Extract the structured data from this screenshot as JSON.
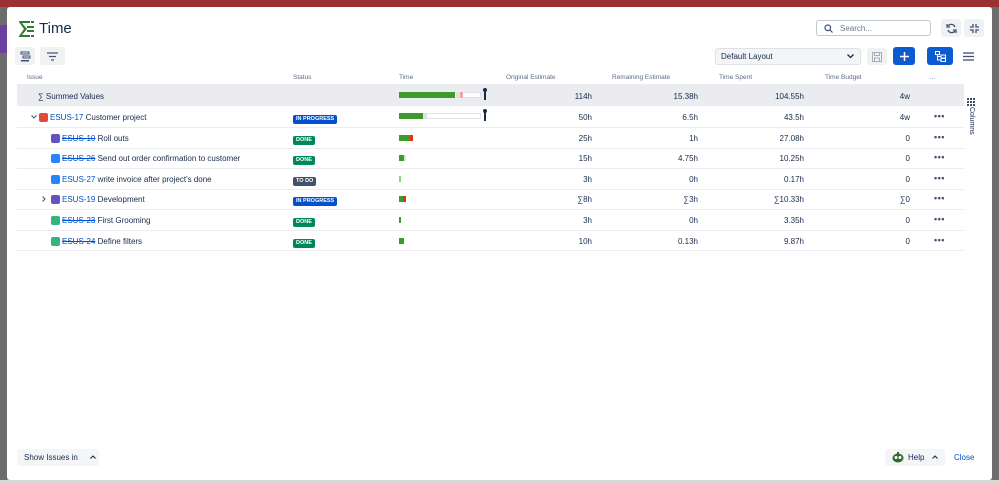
{
  "app": {
    "title": "Time"
  },
  "search": {
    "placeholder": "Search..."
  },
  "layout": {
    "selected": "Default Layout"
  },
  "columns_panel": {
    "label": "Columns"
  },
  "table": {
    "headers": [
      "Issue",
      "Status",
      "Time",
      "Original Estimate",
      "Remaining Estimate",
      "Time Spent",
      "Time Budget",
      "..."
    ],
    "summary": {
      "label": "∑ Summed Values",
      "original": "114h",
      "remaining": "15.38h",
      "spent": "104.55h",
      "budget": "4w",
      "time_progress": 0.64
    },
    "rows": [
      {
        "key": "ESUS-17",
        "summary": "Customer project",
        "status": "IN PROGRESS",
        "original": "50h",
        "remaining": "6.5h",
        "spent": "43.5h",
        "budget": "4w",
        "actions": "•••"
      },
      {
        "key": "ESUS-10",
        "summary": "Roll outs",
        "status": "DONE",
        "original": "25h",
        "remaining": "1h",
        "spent": "27.08h",
        "budget": "0",
        "actions": "•••"
      },
      {
        "key": "ESUS-26",
        "summary": "Send out order confirmation to customer",
        "status": "DONE",
        "original": "15h",
        "remaining": "4.75h",
        "spent": "10.25h",
        "budget": "0",
        "actions": "•••"
      },
      {
        "key": "ESUS-27",
        "summary": "write invoice after project's done",
        "status": "TO DO",
        "original": "3h",
        "remaining": "0h",
        "spent": "0.17h",
        "budget": "0",
        "actions": "•••"
      },
      {
        "key": "ESUS-19",
        "summary": "Development",
        "status": "IN PROGRESS",
        "original": "∑8h",
        "remaining": "∑3h",
        "spent": "∑10.33h",
        "budget": "∑0",
        "actions": "•••"
      },
      {
        "key": "ESUS-23",
        "summary": "First Grooming",
        "status": "DONE",
        "original": "3h",
        "remaining": "0h",
        "spent": "3.35h",
        "budget": "0",
        "actions": "•••"
      },
      {
        "key": "ESUS-24",
        "summary": "Define filters",
        "status": "DONE",
        "original": "10h",
        "remaining": "0.13h",
        "spent": "9.87h",
        "budget": "0",
        "actions": "•••"
      }
    ]
  },
  "footer": {
    "show_issues": "Show Issues in",
    "help": "Help",
    "close": "Close"
  },
  "colors": {
    "accent": "#0c5bd1",
    "done": "#00875a",
    "progress": "#0052cc",
    "todo": "#42526e",
    "bar_green": "#3d9a2c",
    "bar_red": "#de350b"
  }
}
